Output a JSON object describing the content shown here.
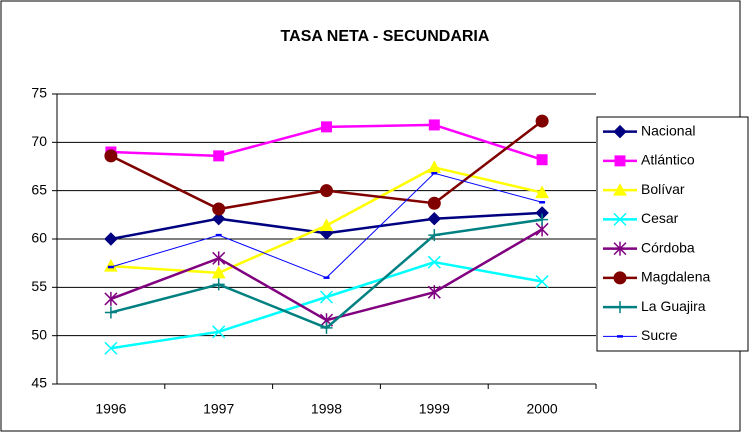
{
  "chart_data": {
    "type": "line",
    "title": "TASA NETA - SECUNDARIA",
    "categories": [
      "1996",
      "1997",
      "1998",
      "1999",
      "2000"
    ],
    "ylim": [
      45,
      75
    ],
    "yticks": [
      45,
      50,
      55,
      60,
      65,
      70,
      75
    ],
    "grid": true,
    "legend": "right",
    "series": [
      {
        "name": "Nacional",
        "color": "#000080",
        "marker": "diamond",
        "values": [
          60.0,
          62.1,
          60.6,
          62.1,
          62.7
        ]
      },
      {
        "name": "Atlántico",
        "color": "#FF00FF",
        "marker": "square",
        "values": [
          69.0,
          68.6,
          71.6,
          71.8,
          68.2
        ]
      },
      {
        "name": "Bolívar",
        "color": "#FFFF00",
        "marker": "triangle",
        "values": [
          57.2,
          56.5,
          61.4,
          67.4,
          64.8
        ]
      },
      {
        "name": "Cesar",
        "color": "#00FFFF",
        "marker": "x",
        "values": [
          48.7,
          50.4,
          54.0,
          57.6,
          55.6
        ]
      },
      {
        "name": "Córdoba",
        "color": "#800080",
        "marker": "star",
        "values": [
          53.8,
          58.0,
          51.6,
          54.5,
          61.0
        ]
      },
      {
        "name": "Magdalena",
        "color": "#800000",
        "marker": "circle",
        "values": [
          68.6,
          63.1,
          65.0,
          63.7,
          72.2
        ]
      },
      {
        "name": "La Guajira",
        "color": "#008080",
        "marker": "plus",
        "values": [
          52.4,
          55.3,
          50.8,
          60.4,
          62.0
        ]
      },
      {
        "name": "Sucre",
        "color": "#0000FF",
        "marker": "dash",
        "values": [
          57.1,
          60.4,
          56.0,
          66.8,
          63.8
        ]
      }
    ]
  }
}
